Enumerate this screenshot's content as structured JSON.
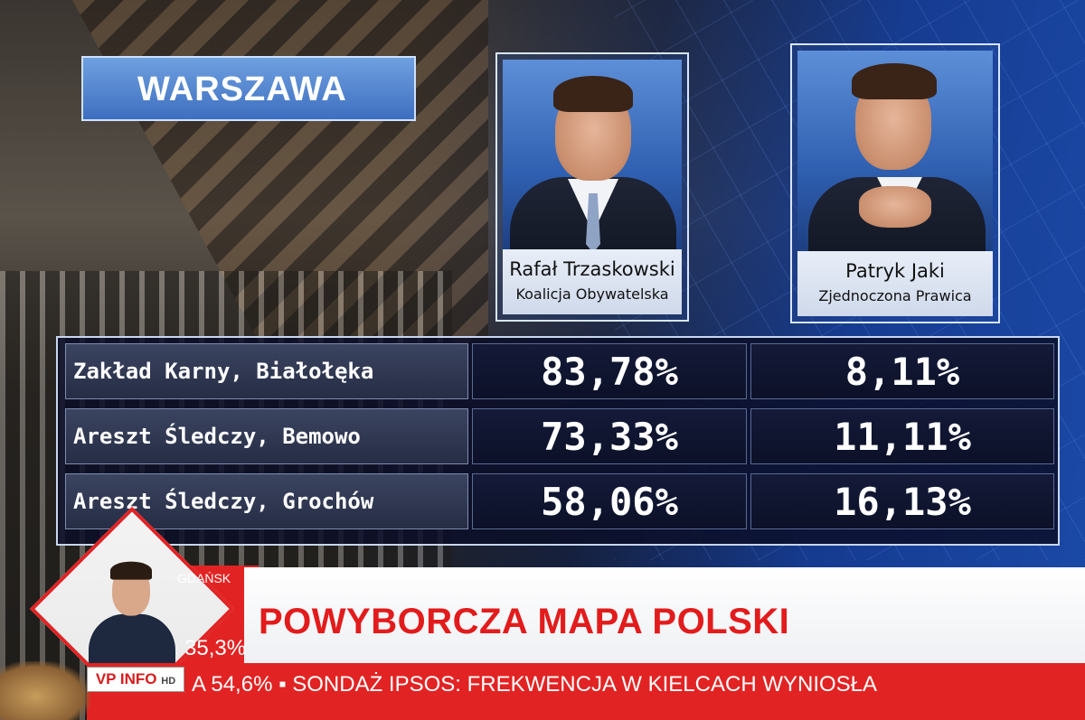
{
  "title": "WARSZAWA",
  "candidates": [
    {
      "name": "Rafał Trzaskowski",
      "party": "Koalicja Obywatelska"
    },
    {
      "name": "Patryk Jaki",
      "party": "Zjednoczona Prawica"
    }
  ],
  "results": [
    {
      "place": "Zakład Karny, Białołęka",
      "c1": "83,78%",
      "c2": "8,11%"
    },
    {
      "place": "Areszt Śledczy, Bemowo",
      "c1": "73,33%",
      "c2": "11,11%"
    },
    {
      "place": "Areszt Śledczy, Grochów",
      "c1": "58,06%",
      "c2": "16,13%"
    }
  ],
  "lower_third": {
    "city": "GDAŃSK",
    "percent": "35,3%",
    "headline": "POWYBORCZA MAPA POLSKI",
    "channel_logo": "VP INFO",
    "channel_logo_hd": "HD",
    "ticker": "A 54,6% ▪ SONDAŻ IPSOS: FREKWENCJA W KIELCACH WYNIOSŁA"
  },
  "colors": {
    "accent_red": "#e22323",
    "title_blue": "#3e6fc0"
  }
}
